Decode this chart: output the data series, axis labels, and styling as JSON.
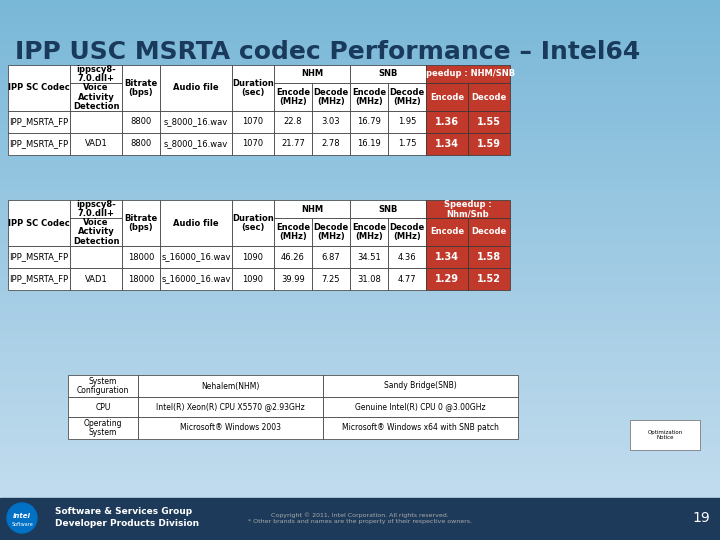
{
  "title": "IPP USC MSRTA codec Performance – Intel64",
  "background_top": "#b8d4e8",
  "background_bottom": "#7ab0d0",
  "footer_bg": "#1a3a5c",
  "table1": {
    "headers": [
      "IPP SC Codec",
      "ippscy8-\n7.0.dll+\nVoice\nActivity\nDetection",
      "Bitrate\n(bps)",
      "Audio file",
      "Duration\n(sec)",
      "Encode\n(MHz)",
      "Decode\n(MHz)",
      "Encode\n(MHz)",
      "Decode\n(MHz)",
      "Encode",
      "Decode"
    ],
    "col_headers_row1": [
      "IPP SC Codec",
      "ippscy8-\n7.0.dll+",
      "Bitrate\n(bps)",
      "Audio file",
      "",
      "NHM",
      "",
      "SNB",
      "",
      "Speedup : NHM/SNB",
      ""
    ],
    "col_headers_row2": [
      "",
      "Voice\nActivity\nDetection",
      "",
      "",
      "Duration\n(sec)",
      "Encode\n(MHz)",
      "Decode\n(MHz)",
      "Encode\n(MHz)",
      "Decode\n(MHz)",
      "Encode",
      "Decode"
    ],
    "rows": [
      [
        "IPP_MSRTA_FP",
        "",
        "8800",
        "s_8000_16.wav",
        "1070",
        "22.8",
        "3.03",
        "16.79",
        "1.95",
        "1.36",
        "1.55"
      ],
      [
        "IPP_MSRTA_FP",
        "VAD1",
        "8800",
        "s_8000_16.wav",
        "1070",
        "21.77",
        "2.78",
        "16.19",
        "1.75",
        "1.34",
        "1.59"
      ]
    ]
  },
  "table2": {
    "rows": [
      [
        "IPP_MSRTA_FP",
        "",
        "18000",
        "s_16000_16.wav",
        "1090",
        "46.26",
        "6.87",
        "34.51",
        "4.36",
        "1.34",
        "1.58"
      ],
      [
        "IPP_MSRTA_FP",
        "VAD1",
        "18000",
        "s_16000_16.wav",
        "1090",
        "39.99",
        "7.25",
        "31.08",
        "4.77",
        "1.29",
        "1.52"
      ]
    ]
  },
  "sys_table": {
    "rows": [
      [
        "System\nConfiguration",
        "Nehalem(NHM)",
        "Sandy Bridge(SNB)"
      ],
      [
        "CPU",
        "Intel(R) Xeon(R) CPU X5570 @2.93GHz",
        "Genuine Intel(R) CPU 0 @3.00GHz"
      ],
      [
        "Operating\nSystem",
        "Microsoft® Windows 2003",
        "Microsoft® Windows x64 with SNB patch"
      ]
    ]
  },
  "speedup_color": "#c0392b",
  "speedup_text_color": "#ffffff",
  "header_bg": "#ffffff",
  "row_bg": "#ffffff",
  "border_color": "#000000",
  "page_num": "19"
}
